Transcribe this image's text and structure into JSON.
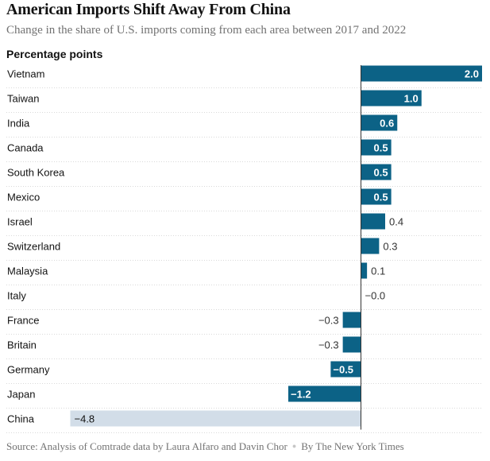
{
  "title": "American Imports Shift Away From China",
  "subtitle": "Change in the share of U.S. imports coming from each area between 2017 and 2022",
  "unit_label": "Percentage points",
  "source": {
    "text": "Source: Analysis of Comtrade data by Laura Alfaro and Davin Chor",
    "credit": "By The New York Times"
  },
  "colors": {
    "bar": "#0c6286",
    "highlight": "#d2dde8",
    "baseline": "#333333",
    "gridline": "#d9d9d9"
  },
  "chart_data": {
    "type": "bar",
    "orientation": "horizontal",
    "title": "American Imports Shift Away From China",
    "subtitle": "Change in the share of U.S. imports coming from each area between 2017 and 2022",
    "ylabel": "Percentage points",
    "xlim": [
      -4.8,
      2.0
    ],
    "categories": [
      "Vietnam",
      "Taiwan",
      "India",
      "Canada",
      "South Korea",
      "Mexico",
      "Israel",
      "Switzerland",
      "Malaysia",
      "Italy",
      "France",
      "Britain",
      "Germany",
      "Japan",
      "China"
    ],
    "values": [
      2.0,
      1.0,
      0.6,
      0.5,
      0.5,
      0.5,
      0.4,
      0.3,
      0.1,
      -0.0,
      -0.3,
      -0.3,
      -0.5,
      -1.2,
      -4.8
    ],
    "labels": [
      "2.0",
      "1.0",
      "0.6",
      "0.5",
      "0.5",
      "0.5",
      "0.4",
      "0.3",
      "0.1",
      "−0.0",
      "−0.3",
      "−0.3",
      "−0.5",
      "−1.2",
      "−4.8"
    ],
    "highlight": "China"
  }
}
